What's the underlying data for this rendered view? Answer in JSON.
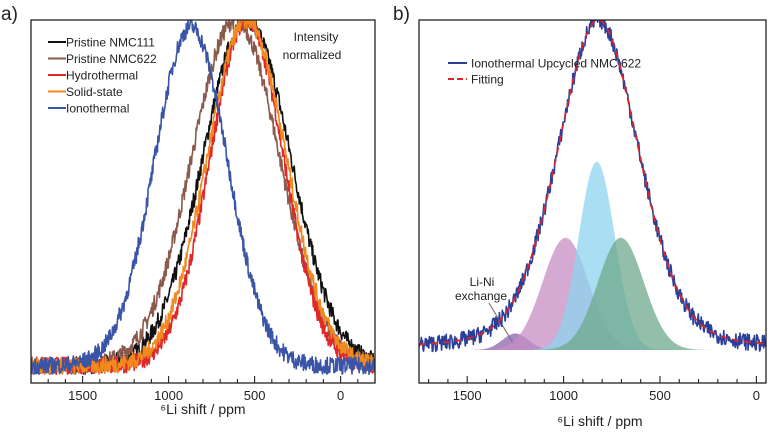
{
  "chart_data": [
    {
      "panel_label": "a)",
      "type": "line",
      "xlabel": "⁶Li shift / ppm",
      "ylabel": "",
      "xlim": [
        1800,
        -200
      ],
      "ylim": [
        -0.05,
        1.0
      ],
      "x_reversed": true,
      "xticks": [
        1500,
        1000,
        500,
        0
      ],
      "minor_tick_step": 100,
      "grid": false,
      "annotation": [
        "Intensity",
        "normalized"
      ],
      "legend_placement": "top-left",
      "series": [
        {
          "name": "Pristine NMC111",
          "color": "#111111",
          "peak_center_ppm": 545,
          "fwhm_ppm": 600,
          "height": 1.0
        },
        {
          "name": "Pristine NMC622",
          "color": "#8a5a4c",
          "peak_center_ppm": 610,
          "fwhm_ppm": 600,
          "height": 1.0
        },
        {
          "name": "Hydrothermal",
          "color": "#e0282a",
          "peak_center_ppm": 545,
          "fwhm_ppm": 500,
          "height": 1.0
        },
        {
          "name": "Solid-state",
          "color": "#f08a1e",
          "peak_center_ppm": 545,
          "fwhm_ppm": 540,
          "height": 1.0
        },
        {
          "name": "Ionothermal",
          "color": "#3a55a8",
          "peak_center_ppm": 870,
          "fwhm_ppm": 500,
          "height": 0.98
        }
      ]
    },
    {
      "panel_label": "b)",
      "type": "line",
      "xlabel": "⁶Li shift / ppm",
      "ylabel": "",
      "xlim": [
        1750,
        -50
      ],
      "ylim": [
        -0.1,
        1.0
      ],
      "x_reversed": true,
      "xticks": [
        1500,
        1000,
        500,
        0
      ],
      "minor_tick_step": 100,
      "grid": false,
      "legend_placement": "top-left",
      "series": [
        {
          "name": "Ionothermal Upcycled NMC 622",
          "color": "#2a3f9a",
          "style": "solid",
          "peak_center_ppm": 820,
          "fwhm_ppm": 500,
          "height": 1.0
        },
        {
          "name": "Fitting",
          "color": "#d8262b",
          "style": "dashed",
          "peak_center_ppm": 820,
          "fwhm_ppm": 500,
          "height": 1.0
        }
      ],
      "components": [
        {
          "color": "#8a64a8",
          "center_ppm": 1250,
          "fwhm_ppm": 160,
          "height": 0.05
        },
        {
          "color": "#c58ec4",
          "center_ppm": 990,
          "fwhm_ppm": 280,
          "height": 0.34
        },
        {
          "color": "#8ed3ee",
          "center_ppm": 828,
          "fwhm_ppm": 220,
          "height": 0.57
        },
        {
          "color": "#6fa88c",
          "center_ppm": 703,
          "fwhm_ppm": 280,
          "height": 0.34
        }
      ],
      "annotation": [
        "Li-Ni",
        "exchange"
      ]
    }
  ]
}
